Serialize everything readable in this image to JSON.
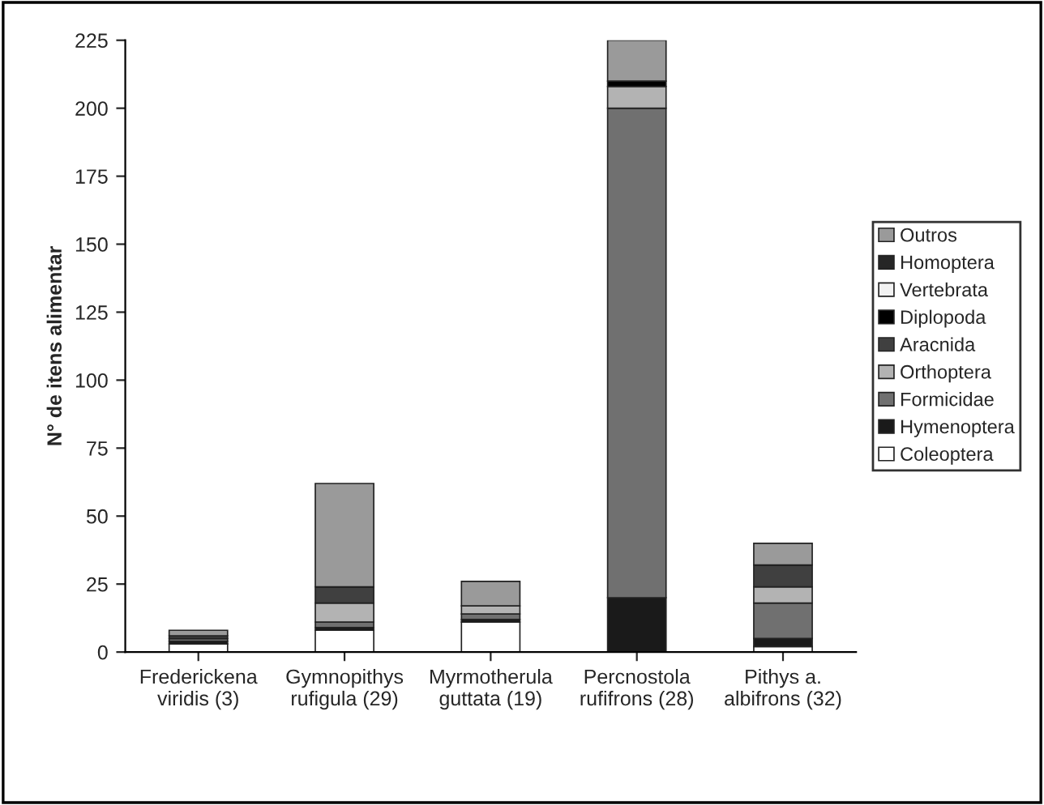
{
  "chart_data": {
    "type": "bar",
    "stacked": true,
    "ylabel": "N° de itens alimentar",
    "categories": [
      "Frederickena\nviridis (3)",
      "Gymnopithys\nrufigula (29)",
      "Myrmotherula\nguttata (19)",
      "Percnostola\nrufifrons (28)",
      "Pithys a.\nalbifrons (32)"
    ],
    "series": [
      {
        "name": "Coleoptera",
        "color": "#ffffff",
        "values": [
          3,
          8,
          11,
          0,
          2
        ]
      },
      {
        "name": "Hymenoptera",
        "color": "#1a1a1a",
        "values": [
          1,
          1,
          1,
          20,
          3
        ]
      },
      {
        "name": "Formicidae",
        "color": "#707070",
        "values": [
          1,
          2,
          2,
          180,
          13
        ]
      },
      {
        "name": "Orthoptera",
        "color": "#b3b3b3",
        "values": [
          0,
          7,
          3,
          8,
          6
        ]
      },
      {
        "name": "Aracnida",
        "color": "#404040",
        "values": [
          1,
          6,
          0,
          0,
          8
        ]
      },
      {
        "name": "Diplopoda",
        "color": "#000000",
        "values": [
          0,
          0,
          0,
          2,
          0
        ]
      },
      {
        "name": "Vertebrata",
        "color": "#f2f2f2",
        "values": [
          0,
          0,
          0,
          0,
          0
        ]
      },
      {
        "name": "Homoptera",
        "color": "#262626",
        "values": [
          0,
          0,
          0,
          0,
          0
        ]
      },
      {
        "name": "Outros",
        "color": "#9a9a9a",
        "values": [
          2,
          38,
          9,
          15,
          8
        ]
      }
    ],
    "ylim": [
      0,
      225
    ],
    "yticks": [
      0,
      25,
      50,
      75,
      100,
      125,
      150,
      175,
      200,
      225
    ],
    "legend": "right",
    "grid": false
  }
}
